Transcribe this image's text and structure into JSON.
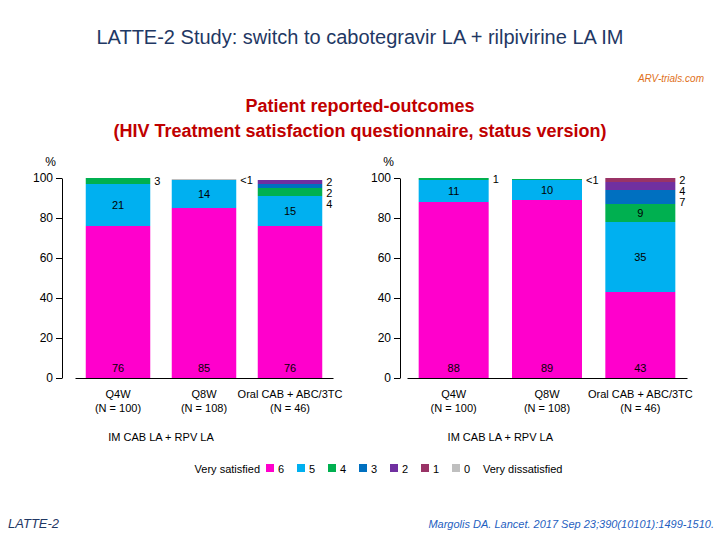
{
  "slide": {
    "title": "LATTE-2 Study: switch to cabotegravir LA + rilpivirine LA IM",
    "subtitle": "Patient reported-outcomes\n(HIV Treatment satisfaction questionnaire, status version)",
    "logo": "ARV-trials.com",
    "legend_start": "Very satisfied",
    "legend_end": "Very dissatisfied",
    "footer": "LATTE-2",
    "source": "Margolis DA. Lancet. 2017 Sep 23;390(10101):1499-1510."
  },
  "chart_data": [
    {
      "type": "bar",
      "stacked": true,
      "data_labels": true,
      "y_label": "%",
      "categories": [
        "Q4W\n(N = 100)",
        "Q8W\n(N = 108)",
        "Oral CAB + ABC/3TC\n(N = 46)"
      ],
      "annotations": [
        "IM CAB LA + RPV LA"
      ],
      "ylim": [
        0,
        100
      ],
      "yticks": [
        0,
        20,
        40,
        60,
        80,
        100
      ],
      "series": [
        {
          "name": "6",
          "color": "#ff00cc",
          "values": [
            76,
            85,
            76
          ]
        },
        {
          "name": "5",
          "color": "#00b0f0",
          "values": [
            21,
            14,
            15
          ]
        },
        {
          "name": "4",
          "color": "#00b050",
          "values": [
            3,
            null,
            4
          ]
        },
        {
          "name": "3",
          "color": "#0070c0",
          "values": [
            null,
            null,
            2
          ]
        },
        {
          "name": "2",
          "color": "#7030a0",
          "values": [
            null,
            null,
            2
          ]
        },
        {
          "name": "1",
          "color": "#993366",
          "values": [
            null,
            null,
            null
          ]
        },
        {
          "name": "0",
          "color": "#bfbfbf",
          "values": [
            null,
            0.5,
            null
          ],
          "value_labels": [
            null,
            "<1",
            null
          ]
        }
      ]
    },
    {
      "type": "bar",
      "stacked": true,
      "data_labels": true,
      "y_label": "%",
      "categories": [
        "Q4W\n(N = 100)",
        "Q8W\n(N = 108)",
        "Oral CAB + ABC/3TC\n(N = 46)"
      ],
      "annotations": [
        "IM CAB LA + RPV LA"
      ],
      "ylim": [
        0,
        100
      ],
      "yticks": [
        0,
        20,
        40,
        60,
        80,
        100
      ],
      "series": [
        {
          "name": "6",
          "color": "#ff00cc",
          "values": [
            88,
            89,
            43
          ]
        },
        {
          "name": "5",
          "color": "#00b0f0",
          "values": [
            11,
            10,
            35
          ]
        },
        {
          "name": "4",
          "color": "#00b050",
          "values": [
            1,
            0.5,
            9
          ],
          "value_labels": [
            null,
            "<1",
            null
          ]
        },
        {
          "name": "3",
          "color": "#0070c0",
          "values": [
            null,
            null,
            7
          ]
        },
        {
          "name": "2",
          "color": "#7030a0",
          "values": [
            null,
            null,
            4
          ]
        },
        {
          "name": "1",
          "color": "#993366",
          "values": [
            null,
            null,
            2
          ]
        },
        {
          "name": "0",
          "color": "#bfbfbf",
          "values": [
            null,
            null,
            null
          ]
        }
      ]
    }
  ]
}
